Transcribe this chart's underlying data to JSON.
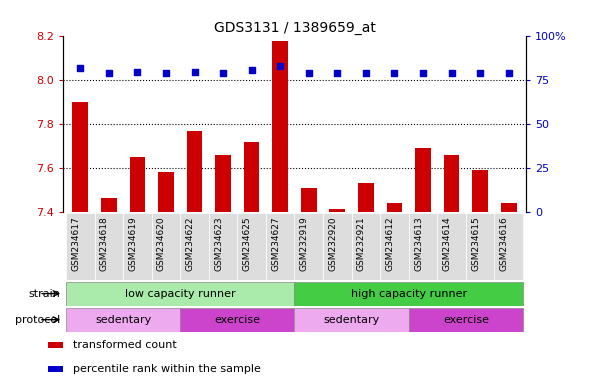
{
  "title": "GDS3131 / 1389659_at",
  "samples": [
    "GSM234617",
    "GSM234618",
    "GSM234619",
    "GSM234620",
    "GSM234622",
    "GSM234623",
    "GSM234625",
    "GSM234627",
    "GSM232919",
    "GSM232920",
    "GSM232921",
    "GSM234612",
    "GSM234613",
    "GSM234614",
    "GSM234615",
    "GSM234616"
  ],
  "bar_values": [
    7.9,
    7.46,
    7.65,
    7.58,
    7.77,
    7.66,
    7.72,
    8.18,
    7.51,
    7.41,
    7.53,
    7.44,
    7.69,
    7.66,
    7.59,
    7.44
  ],
  "dot_values": [
    82,
    79,
    80,
    79,
    80,
    79,
    81,
    83,
    79,
    79,
    79,
    79,
    79,
    79,
    79,
    79
  ],
  "ylim_left": [
    7.4,
    8.2
  ],
  "ylim_right": [
    0,
    100
  ],
  "yticks_left": [
    7.4,
    7.6,
    7.8,
    8.0,
    8.2
  ],
  "yticks_right": [
    0,
    25,
    50,
    75,
    100
  ],
  "ytick_labels_right": [
    "0",
    "25",
    "50",
    "75",
    "100%"
  ],
  "hlines": [
    8.0,
    7.8,
    7.6
  ],
  "bar_color": "#cc0000",
  "dot_color": "#0000cc",
  "bar_bottom": 7.4,
  "strain_groups": [
    {
      "label": "low capacity runner",
      "start": 0,
      "end": 8,
      "color": "#aaeaaa"
    },
    {
      "label": "high capacity runner",
      "start": 8,
      "end": 16,
      "color": "#44cc44"
    }
  ],
  "protocol_groups": [
    {
      "label": "sedentary",
      "start": 0,
      "end": 4,
      "color": "#eeaaee"
    },
    {
      "label": "exercise",
      "start": 4,
      "end": 8,
      "color": "#cc44cc"
    },
    {
      "label": "sedentary",
      "start": 8,
      "end": 12,
      "color": "#eeaaee"
    },
    {
      "label": "exercise",
      "start": 12,
      "end": 16,
      "color": "#cc44cc"
    }
  ],
  "legend_items": [
    {
      "label": "transformed count",
      "color": "#cc0000"
    },
    {
      "label": "percentile rank within the sample",
      "color": "#0000cc"
    }
  ],
  "strain_label": "strain",
  "protocol_label": "protocol",
  "background_color": "#ffffff",
  "tick_label_color_left": "#cc0000",
  "tick_label_color_right": "#0000cc",
  "xtick_bg_color": "#dddddd"
}
